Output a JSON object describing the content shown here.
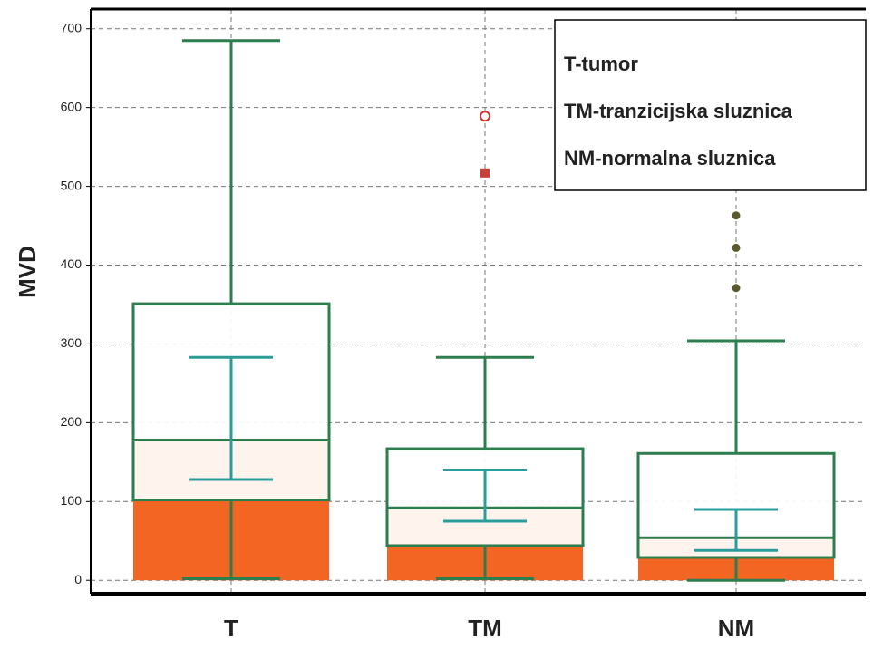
{
  "chart_data": {
    "type": "box",
    "y_label": "MVD",
    "categories": [
      "T",
      "TM",
      "NM"
    ],
    "legend": [
      "T-tumor",
      "TM-tranzicijska sluznica",
      "NM-normalna sluznica"
    ],
    "boxes": [
      {
        "min": 2,
        "q1": 102,
        "median": 178,
        "q3": 351,
        "max": 685,
        "mean": 180,
        "ci_low": 128,
        "ci_high": 283,
        "outliers": [],
        "outlier_markers": []
      },
      {
        "min": 2,
        "q1": 44,
        "median": 92,
        "q3": 167,
        "max": 283,
        "mean": 92,
        "ci_low": 75,
        "ci_high": 140,
        "outliers": [
          589,
          517
        ],
        "outlier_markers": [
          "open-circle",
          "square"
        ]
      },
      {
        "min": 0,
        "q1": 29,
        "median": 54,
        "q3": 161,
        "max": 304,
        "mean": 54,
        "ci_low": 38,
        "ci_high": 90,
        "outliers": [
          463,
          422,
          371
        ],
        "outlier_markers": [
          "dot",
          "dot",
          "dot"
        ]
      }
    ],
    "ylim": [
      -17,
      725
    ],
    "yticks": [
      0,
      100,
      200,
      300,
      400,
      500,
      600,
      700
    ],
    "grid": true,
    "box_color": "#2e7d4f",
    "bar_color": "#f26522",
    "ci_color": "#2a9d9a",
    "outlier_colors": {
      "open-circle": "#d9302b",
      "square": "#c9403a",
      "dot": "#5a5a2a"
    }
  }
}
